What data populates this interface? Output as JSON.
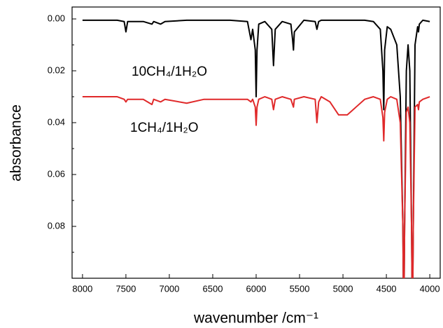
{
  "chart_data": {
    "type": "line",
    "x_label": "wavenumber /cm⁻¹",
    "y_label": "absorbance",
    "xlim": [
      8120,
      3880
    ],
    "ylim": [
      -0.0046,
      0.1
    ],
    "xticks": [
      8000,
      7500,
      7000,
      6500,
      6000,
      5500,
      5000,
      4500,
      4000
    ],
    "yticks": [
      {
        "value": 0,
        "label": "0.00"
      },
      {
        "value": 0.02,
        "label": "0.02"
      },
      {
        "value": 0.04,
        "label": "0.04"
      },
      {
        "value": 0.06,
        "label": "0.06"
      },
      {
        "value": 0.08,
        "label": "0.08"
      }
    ],
    "yminor": [
      0.01,
      0.03,
      0.05,
      0.07,
      0.09
    ],
    "x": [
      8000,
      7600,
      7520,
      7500,
      7480,
      7300,
      7200,
      7180,
      7100,
      7050,
      6800,
      6600,
      6300,
      6100,
      6060,
      6040,
      6010,
      6000,
      5990,
      5970,
      5900,
      5820,
      5800,
      5780,
      5700,
      5600,
      5580,
      5570,
      5560,
      5450,
      5320,
      5300,
      5280,
      5250,
      5150,
      5050,
      4950,
      4850,
      4750,
      4650,
      4570,
      4540,
      4530,
      4520,
      4490,
      4450,
      4380,
      4340,
      4310,
      4300,
      4290,
      4270,
      4250,
      4230,
      4210,
      4200,
      4190,
      4170,
      4140,
      4130,
      4120,
      4080,
      4000
    ],
    "series": [
      {
        "name": "10CH₄/1H₂O",
        "color": "#000000",
        "values": [
          0.0005,
          0.0005,
          0.001,
          0.005,
          0.001,
          0.001,
          0.002,
          0.001,
          0.002,
          0.001,
          0.0005,
          0.0005,
          0.0005,
          0.001,
          0.008,
          0.004,
          0.012,
          0.03,
          0.012,
          0.002,
          0.001,
          0.004,
          0.018,
          0.004,
          0.001,
          0.002,
          0.008,
          0.012,
          0.005,
          0.0005,
          0.001,
          0.004,
          0.001,
          0.0005,
          0.0005,
          0.0005,
          0.0005,
          0.0005,
          0.0005,
          0.001,
          0.004,
          0.02,
          0.035,
          0.012,
          0.003,
          0.004,
          0.01,
          0.03,
          0.08,
          0.12,
          0.08,
          0.02,
          0.01,
          0.02,
          0.08,
          0.12,
          0.08,
          0.01,
          0.003,
          0.005,
          0.002,
          0.0005,
          0.001
        ]
      },
      {
        "name": "1CH₄/1H₂O",
        "color": "#e0292a",
        "values": [
          0.03,
          0.03,
          0.031,
          0.032,
          0.031,
          0.031,
          0.033,
          0.031,
          0.032,
          0.031,
          0.0325,
          0.031,
          0.031,
          0.031,
          0.032,
          0.031,
          0.034,
          0.041,
          0.034,
          0.031,
          0.03,
          0.031,
          0.035,
          0.031,
          0.03,
          0.031,
          0.033,
          0.034,
          0.031,
          0.03,
          0.031,
          0.04,
          0.032,
          0.03,
          0.032,
          0.037,
          0.037,
          0.034,
          0.031,
          0.03,
          0.031,
          0.038,
          0.047,
          0.036,
          0.031,
          0.03,
          0.031,
          0.04,
          0.08,
          0.12,
          0.08,
          0.036,
          0.034,
          0.04,
          0.08,
          0.12,
          0.08,
          0.034,
          0.033,
          0.035,
          0.032,
          0.031,
          0.03
        ]
      }
    ]
  }
}
